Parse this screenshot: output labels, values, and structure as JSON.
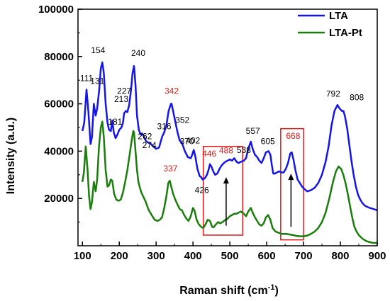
{
  "chart_data": {
    "type": "line",
    "xlabel": "Raman shift (cm",
    "xlabel_sup": "-1",
    "xlabel_tail": ")",
    "ylabel": "Intensity (a.u.)",
    "xlim": [
      88,
      900
    ],
    "ylim": [
      0,
      100000
    ],
    "xticks": [
      100,
      200,
      300,
      400,
      500,
      600,
      700,
      800,
      900
    ],
    "yticks": [
      20000,
      40000,
      60000,
      80000,
      100000
    ],
    "grid": false,
    "legend_position": "top-right",
    "series": [
      {
        "name": "LTA",
        "color": "#1515e6",
        "points": [
          [
            100,
            48500
          ],
          [
            105,
            52000
          ],
          [
            111,
            66000
          ],
          [
            116,
            57000
          ],
          [
            122,
            43000
          ],
          [
            126,
            46000
          ],
          [
            131,
            60000
          ],
          [
            136,
            55000
          ],
          [
            140,
            58000
          ],
          [
            145,
            65000
          ],
          [
            150,
            75000
          ],
          [
            154,
            77500
          ],
          [
            158,
            73000
          ],
          [
            163,
            60000
          ],
          [
            168,
            52000
          ],
          [
            172,
            49000
          ],
          [
            177,
            48500
          ],
          [
            181,
            53000
          ],
          [
            185,
            48000
          ],
          [
            190,
            45500
          ],
          [
            195,
            47000
          ],
          [
            200,
            49000
          ],
          [
            206,
            50000
          ],
          [
            210,
            52000
          ],
          [
            213,
            56000
          ],
          [
            218,
            57000
          ],
          [
            222,
            56500
          ],
          [
            227,
            59500
          ],
          [
            232,
            66000
          ],
          [
            236,
            73000
          ],
          [
            240,
            76000
          ],
          [
            244,
            68000
          ],
          [
            248,
            55000
          ],
          [
            253,
            49000
          ],
          [
            258,
            47000
          ],
          [
            262,
            47500
          ],
          [
            266,
            46500
          ],
          [
            270,
            45000
          ],
          [
            274,
            44000
          ],
          [
            280,
            43500
          ],
          [
            286,
            43000
          ],
          [
            292,
            42000
          ],
          [
            300,
            41000
          ],
          [
            308,
            41500
          ],
          [
            316,
            46000
          ],
          [
            322,
            48000
          ],
          [
            328,
            51000
          ],
          [
            334,
            57000
          ],
          [
            340,
            60000
          ],
          [
            342,
            60000
          ],
          [
            346,
            57000
          ],
          [
            352,
            52500
          ],
          [
            358,
            48000
          ],
          [
            364,
            44500
          ],
          [
            370,
            43500
          ],
          [
            378,
            40000
          ],
          [
            386,
            37500
          ],
          [
            394,
            37000
          ],
          [
            398,
            38500
          ],
          [
            402,
            40500
          ],
          [
            406,
            38000
          ],
          [
            412,
            32500
          ],
          [
            418,
            29500
          ],
          [
            422,
            29000
          ],
          [
            426,
            28000
          ],
          [
            432,
            28500
          ],
          [
            438,
            30000
          ],
          [
            442,
            32000
          ],
          [
            446,
            34500
          ],
          [
            450,
            33500
          ],
          [
            455,
            31500
          ],
          [
            460,
            30000
          ],
          [
            466,
            30500
          ],
          [
            472,
            32500
          ],
          [
            478,
            34000
          ],
          [
            484,
            35000
          ],
          [
            488,
            35500
          ],
          [
            494,
            36000
          ],
          [
            500,
            36500
          ],
          [
            506,
            36000
          ],
          [
            512,
            37000
          ],
          [
            518,
            35500
          ],
          [
            524,
            35000
          ],
          [
            530,
            35500
          ],
          [
            538,
            36000
          ],
          [
            544,
            37000
          ],
          [
            550,
            41000
          ],
          [
            557,
            44000
          ],
          [
            562,
            41000
          ],
          [
            568,
            38500
          ],
          [
            574,
            37500
          ],
          [
            580,
            36000
          ],
          [
            586,
            35000
          ],
          [
            592,
            37000
          ],
          [
            598,
            39500
          ],
          [
            605,
            40000
          ],
          [
            610,
            38500
          ],
          [
            614,
            34000
          ],
          [
            618,
            30500
          ],
          [
            622,
            30500
          ],
          [
            628,
            31000
          ],
          [
            634,
            31500
          ],
          [
            640,
            31000
          ],
          [
            646,
            31000
          ],
          [
            652,
            32500
          ],
          [
            658,
            35000
          ],
          [
            664,
            39000
          ],
          [
            668,
            39500
          ],
          [
            672,
            37000
          ],
          [
            678,
            32000
          ],
          [
            684,
            28000
          ],
          [
            690,
            26500
          ],
          [
            696,
            25000
          ],
          [
            702,
            24000
          ],
          [
            710,
            23000
          ],
          [
            720,
            23500
          ],
          [
            730,
            24500
          ],
          [
            740,
            26500
          ],
          [
            750,
            30000
          ],
          [
            760,
            35500
          ],
          [
            768,
            42000
          ],
          [
            776,
            51000
          ],
          [
            784,
            57000
          ],
          [
            792,
            59500
          ],
          [
            798,
            58000
          ],
          [
            804,
            57000
          ],
          [
            808,
            57000
          ],
          [
            812,
            55000
          ],
          [
            818,
            50000
          ],
          [
            824,
            43000
          ],
          [
            830,
            36000
          ],
          [
            836,
            30000
          ],
          [
            842,
            25000
          ],
          [
            848,
            21500
          ],
          [
            854,
            19500
          ],
          [
            860,
            18000
          ],
          [
            866,
            17000
          ],
          [
            872,
            16500
          ],
          [
            880,
            16000
          ],
          [
            890,
            15500
          ],
          [
            900,
            15000
          ]
        ]
      },
      {
        "name": "LTA-Pt",
        "color": "#1a7d0c",
        "points": [
          [
            100,
            27000
          ],
          [
            104,
            31000
          ],
          [
            109,
            42000
          ],
          [
            114,
            32000
          ],
          [
            118,
            21000
          ],
          [
            122,
            15500
          ],
          [
            126,
            18500
          ],
          [
            131,
            27000
          ],
          [
            136,
            23000
          ],
          [
            140,
            28000
          ],
          [
            145,
            42000
          ],
          [
            150,
            50000
          ],
          [
            154,
            52500
          ],
          [
            158,
            46000
          ],
          [
            163,
            32000
          ],
          [
            168,
            25000
          ],
          [
            172,
            25500
          ],
          [
            177,
            28000
          ],
          [
            181,
            27500
          ],
          [
            186,
            22000
          ],
          [
            192,
            19500
          ],
          [
            198,
            19000
          ],
          [
            204,
            19500
          ],
          [
            210,
            22500
          ],
          [
            216,
            27000
          ],
          [
            222,
            32000
          ],
          [
            228,
            38500
          ],
          [
            234,
            45000
          ],
          [
            238,
            48500
          ],
          [
            240,
            48000
          ],
          [
            244,
            40000
          ],
          [
            248,
            32000
          ],
          [
            252,
            27000
          ],
          [
            256,
            24500
          ],
          [
            260,
            22500
          ],
          [
            266,
            20500
          ],
          [
            272,
            18500
          ],
          [
            280,
            15000
          ],
          [
            288,
            13000
          ],
          [
            296,
            11000
          ],
          [
            304,
            10500
          ],
          [
            310,
            11000
          ],
          [
            316,
            12000
          ],
          [
            322,
            16000
          ],
          [
            328,
            21000
          ],
          [
            333,
            26500
          ],
          [
            337,
            27500
          ],
          [
            341,
            25000
          ],
          [
            346,
            22000
          ],
          [
            352,
            19500
          ],
          [
            358,
            17500
          ],
          [
            364,
            15500
          ],
          [
            370,
            15000
          ],
          [
            376,
            13000
          ],
          [
            382,
            11500
          ],
          [
            388,
            10500
          ],
          [
            394,
            12500
          ],
          [
            400,
            16000
          ],
          [
            404,
            15000
          ],
          [
            410,
            11000
          ],
          [
            416,
            9000
          ],
          [
            422,
            8000
          ],
          [
            428,
            7500
          ],
          [
            434,
            9000
          ],
          [
            440,
            11000
          ],
          [
            446,
            10500
          ],
          [
            452,
            8000
          ],
          [
            456,
            7800
          ],
          [
            462,
            9000
          ],
          [
            468,
            10000
          ],
          [
            474,
            9500
          ],
          [
            480,
            10000
          ],
          [
            488,
            11000
          ],
          [
            494,
            11500
          ],
          [
            500,
            12500
          ],
          [
            506,
            13000
          ],
          [
            512,
            13500
          ],
          [
            518,
            13500
          ],
          [
            524,
            14000
          ],
          [
            530,
            14500
          ],
          [
            538,
            13500
          ],
          [
            544,
            12500
          ],
          [
            550,
            14500
          ],
          [
            557,
            16000
          ],
          [
            562,
            14000
          ],
          [
            568,
            12000
          ],
          [
            574,
            10500
          ],
          [
            580,
            9000
          ],
          [
            586,
            8500
          ],
          [
            592,
            9500
          ],
          [
            598,
            12000
          ],
          [
            604,
            13000
          ],
          [
            610,
            11000
          ],
          [
            616,
            7500
          ],
          [
            624,
            6000
          ],
          [
            632,
            5500
          ],
          [
            642,
            5000
          ],
          [
            652,
            5000
          ],
          [
            662,
            4800
          ],
          [
            672,
            4500
          ],
          [
            680,
            4200
          ],
          [
            690,
            4000
          ],
          [
            700,
            4000
          ],
          [
            710,
            4300
          ],
          [
            720,
            5000
          ],
          [
            730,
            6000
          ],
          [
            740,
            7500
          ],
          [
            750,
            10000
          ],
          [
            760,
            14000
          ],
          [
            770,
            20000
          ],
          [
            780,
            27000
          ],
          [
            788,
            31500
          ],
          [
            795,
            33500
          ],
          [
            802,
            32500
          ],
          [
            808,
            30000
          ],
          [
            814,
            26500
          ],
          [
            820,
            22000
          ],
          [
            826,
            17000
          ],
          [
            832,
            12000
          ],
          [
            838,
            8000
          ],
          [
            844,
            6000
          ],
          [
            850,
            4500
          ],
          [
            860,
            3000
          ],
          [
            870,
            2000
          ],
          [
            880,
            1500
          ],
          [
            890,
            1200
          ],
          [
            900,
            1200
          ]
        ]
      }
    ],
    "annotations": [
      {
        "text": "111",
        "x": 111,
        "y": 66000,
        "color": "#000000"
      },
      {
        "text": "131",
        "x": 131,
        "y": 60000,
        "color": "#000000"
      },
      {
        "text": "154",
        "x": 154,
        "y": 77500,
        "color": "#000000"
      },
      {
        "text": "181",
        "x": 181,
        "y": 53000,
        "color": "#000000"
      },
      {
        "text": "213",
        "x": 213,
        "y": 56000,
        "color": "#000000"
      },
      {
        "text": "227",
        "x": 227,
        "y": 59500,
        "color": "#000000"
      },
      {
        "text": "240",
        "x": 240,
        "y": 76000,
        "color": "#000000"
      },
      {
        "text": "262",
        "x": 262,
        "y": 47500,
        "color": "#000000"
      },
      {
        "text": "274",
        "x": 274,
        "y": 44000,
        "color": "#000000"
      },
      {
        "text": "316",
        "x": 316,
        "y": 46000,
        "color": "#000000"
      },
      {
        "text": "342",
        "x": 342,
        "y": 60000,
        "color": "#e01b1b"
      },
      {
        "text": "352",
        "x": 352,
        "y": 52500,
        "color": "#000000"
      },
      {
        "text": "370",
        "x": 370,
        "y": 43500,
        "color": "#000000"
      },
      {
        "text": "402",
        "x": 402,
        "y": 40500,
        "color": "#000000"
      },
      {
        "text": "426",
        "x": 426,
        "y": 28000,
        "color": "#000000"
      },
      {
        "text": "446",
        "x": 446,
        "y": 34500,
        "color": "#e01b1b"
      },
      {
        "text": "488",
        "x": 488,
        "y": 35500,
        "color": "#e01b1b"
      },
      {
        "text": "538",
        "x": 538,
        "y": 36000,
        "color": "#000000"
      },
      {
        "text": "557",
        "x": 557,
        "y": 44000,
        "color": "#000000"
      },
      {
        "text": "605",
        "x": 605,
        "y": 40000,
        "color": "#000000"
      },
      {
        "text": "668",
        "x": 668,
        "y": 39500,
        "color": "#e01b1b"
      },
      {
        "text": "792",
        "x": 792,
        "y": 59500,
        "color": "#000000"
      },
      {
        "text": "808",
        "x": 808,
        "y": 57000,
        "color": "#000000"
      },
      {
        "text": "337",
        "x": 337,
        "y": 27500,
        "color": "#e01b1b"
      }
    ],
    "highlight_boxes": [
      {
        "x0": 428,
        "x1": 535,
        "y0": 4500,
        "y1": 42000,
        "color": "#e01b1b"
      },
      {
        "x0": 638,
        "x1": 700,
        "y0": 2500,
        "y1": 49500,
        "color": "#e01b1b"
      }
    ],
    "arrows": [
      {
        "x": 490,
        "y_from": 8500,
        "y_to": 29000
      },
      {
        "x": 666,
        "y_from": 8000,
        "y_to": 30500
      }
    ]
  }
}
